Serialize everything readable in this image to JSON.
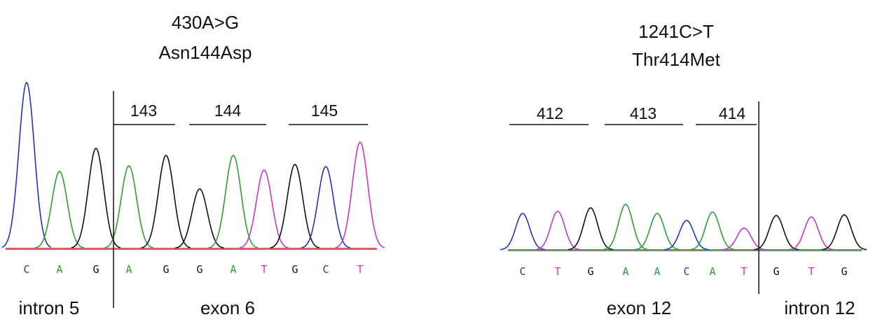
{
  "panels": [
    {
      "title_lines": [
        "430A>G",
        "Asn144Asp"
      ],
      "codons": [
        "143",
        "144",
        "145"
      ],
      "bases": [
        "C",
        "A",
        "G",
        "A",
        "G",
        "G",
        "A",
        "T",
        "G",
        "C",
        "T"
      ],
      "regions": [
        "intron 5",
        "exon 6"
      ]
    },
    {
      "title_lines": [
        "1241C>T",
        "Thr414Met"
      ],
      "codons": [
        "412",
        "413",
        "414"
      ],
      "bases": [
        "C",
        "T",
        "G",
        "A",
        "A",
        "C",
        "A",
        "T",
        "G",
        "T",
        "G"
      ],
      "regions": [
        "exon 12",
        "intron 12"
      ]
    }
  ]
}
